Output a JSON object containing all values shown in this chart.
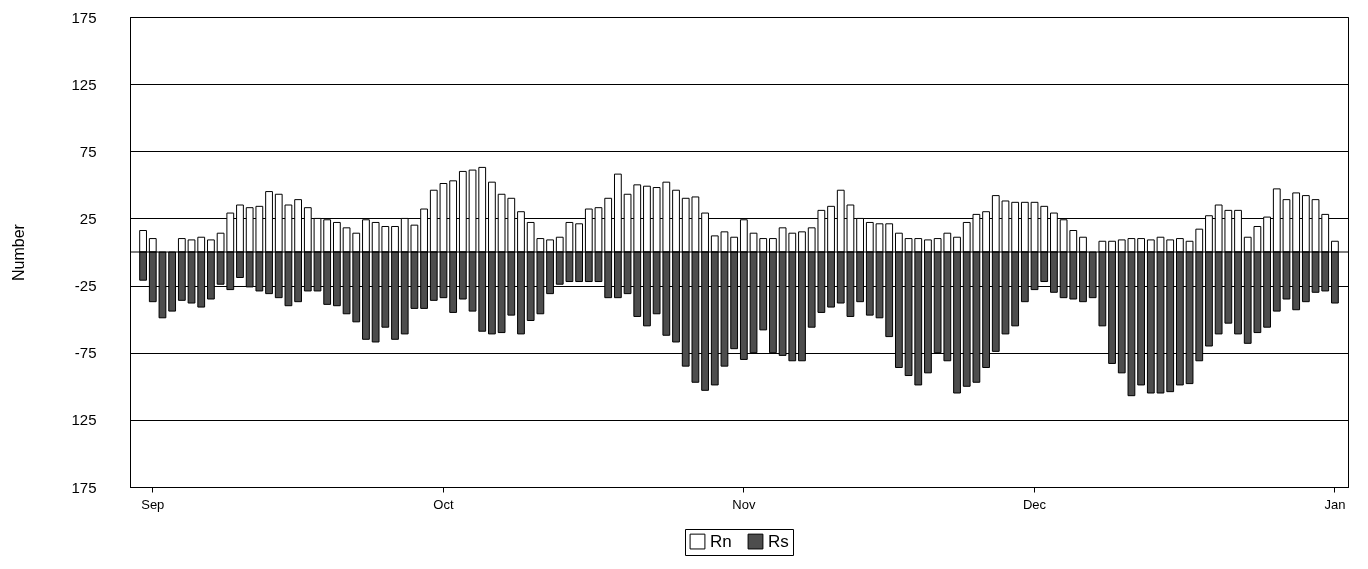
{
  "chart_data": {
    "type": "bar",
    "ylabel": "Number",
    "categories": [
      null,
      "Sep",
      null,
      null,
      null,
      null,
      null,
      null,
      null,
      null,
      null,
      null,
      null,
      null,
      null,
      null,
      null,
      null,
      null,
      null,
      null,
      null,
      null,
      null,
      null,
      null,
      null,
      null,
      null,
      null,
      null,
      "Oct",
      null,
      null,
      null,
      null,
      null,
      null,
      null,
      null,
      null,
      null,
      null,
      null,
      null,
      null,
      null,
      null,
      null,
      null,
      null,
      null,
      null,
      null,
      null,
      null,
      null,
      null,
      null,
      null,
      null,
      null,
      "Nov",
      null,
      null,
      null,
      null,
      null,
      null,
      null,
      null,
      null,
      null,
      null,
      null,
      null,
      null,
      null,
      null,
      null,
      null,
      null,
      null,
      null,
      null,
      null,
      null,
      null,
      null,
      null,
      null,
      null,
      "Dec",
      null,
      null,
      null,
      null,
      null,
      null,
      null,
      null,
      null,
      null,
      null,
      null,
      null,
      null,
      null,
      null,
      null,
      null,
      null,
      null,
      null,
      null,
      null,
      null,
      null,
      null,
      null,
      null,
      null,
      null,
      "Jan"
    ],
    "stacked": true,
    "series": [
      {
        "name": "Rn",
        "color": "#ffffff",
        "values": [
          16,
          10,
          0,
          0,
          10,
          9,
          11,
          9,
          14,
          29,
          35,
          33,
          34,
          45,
          43,
          35,
          39,
          33,
          25,
          24,
          22,
          18,
          14,
          24,
          22,
          19,
          19,
          25,
          20,
          32,
          46,
          51,
          53,
          60,
          61,
          63,
          52,
          43,
          40,
          30,
          22,
          10,
          9,
          11,
          22,
          21,
          32,
          33,
          40,
          58,
          43,
          50,
          49,
          48,
          52,
          46,
          40,
          41,
          29,
          12,
          15,
          11,
          24,
          14,
          10,
          10,
          18,
          14,
          15,
          18,
          31,
          34,
          46,
          35,
          25,
          22,
          21,
          21,
          14,
          10,
          10,
          9,
          10,
          14,
          11,
          22,
          28,
          30,
          42,
          38,
          37,
          37,
          37,
          34,
          29,
          24,
          16,
          11,
          0,
          8,
          8,
          9,
          10,
          10,
          9,
          11,
          9,
          10,
          8,
          17,
          27,
          35,
          31,
          31,
          11,
          19,
          26,
          47,
          39,
          44,
          42,
          39,
          28,
          8
        ]
      },
      {
        "name": "Rs",
        "color": "#4d4d4d",
        "values": [
          -21,
          -37,
          -49,
          -44,
          -36,
          -38,
          -41,
          -35,
          -24,
          -28,
          -19,
          -26,
          -29,
          -31,
          -34,
          -40,
          -37,
          -29,
          -29,
          -39,
          -40,
          -46,
          -52,
          -65,
          -67,
          -56,
          -65,
          -61,
          -42,
          -42,
          -36,
          -34,
          -45,
          -35,
          -44,
          -59,
          -61,
          -60,
          -47,
          -61,
          -51,
          -46,
          -31,
          -24,
          -22,
          -22,
          -22,
          -22,
          -34,
          -34,
          -31,
          -48,
          -55,
          -46,
          -62,
          -67,
          -85,
          -97,
          -103,
          -99,
          -85,
          -72,
          -80,
          -75,
          -58,
          -75,
          -77,
          -81,
          -81,
          -56,
          -45,
          -41,
          -38,
          -48,
          -37,
          -47,
          -49,
          -63,
          -86,
          -92,
          -99,
          -90,
          -75,
          -81,
          -105,
          -100,
          -97,
          -86,
          -74,
          -61,
          -55,
          -37,
          -28,
          -22,
          -30,
          -34,
          -35,
          -37,
          -34,
          -55,
          -83,
          -90,
          -107,
          -99,
          -105,
          -105,
          -104,
          -99,
          -98,
          -81,
          -70,
          -61,
          -53,
          -61,
          -68,
          -60,
          -56,
          -44,
          -35,
          -43,
          -37,
          -30,
          -29,
          -38
        ]
      }
    ],
    "ylim": [
      -175,
      175
    ],
    "yticks": [
      {
        "value": -175,
        "label": "175"
      },
      {
        "value": -125,
        "label": "125"
      },
      -75,
      -25,
      25,
      75,
      125,
      175
    ],
    "ref_lines": [
      {
        "axis": "y",
        "value": 0
      }
    ],
    "grid": "y",
    "legend": "bottom"
  }
}
